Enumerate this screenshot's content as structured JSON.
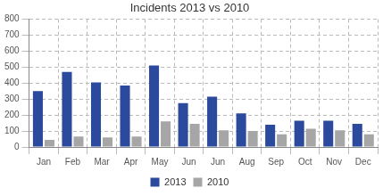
{
  "chart_data": {
    "type": "bar",
    "title": "Incidents 2013 vs 2010",
    "categories": [
      "Jan",
      "Feb",
      "Mar",
      "Apr",
      "May",
      "Jun",
      "Jun",
      "Aug",
      "Sep",
      "Oct",
      "Nov",
      "Dec"
    ],
    "series": [
      {
        "name": "2013",
        "color": "#2b4a9e",
        "values": [
          350,
          470,
          405,
          385,
          510,
          275,
          315,
          210,
          140,
          165,
          165,
          145
        ]
      },
      {
        "name": "2010",
        "color": "#a6a6a6",
        "values": [
          45,
          65,
          60,
          65,
          160,
          145,
          105,
          100,
          80,
          115,
          105,
          80
        ]
      }
    ],
    "ylim": [
      0,
      800
    ],
    "yticks": [
      0,
      100,
      200,
      300,
      400,
      500,
      600,
      700,
      800
    ],
    "grid": true,
    "legend": "bottom"
  }
}
